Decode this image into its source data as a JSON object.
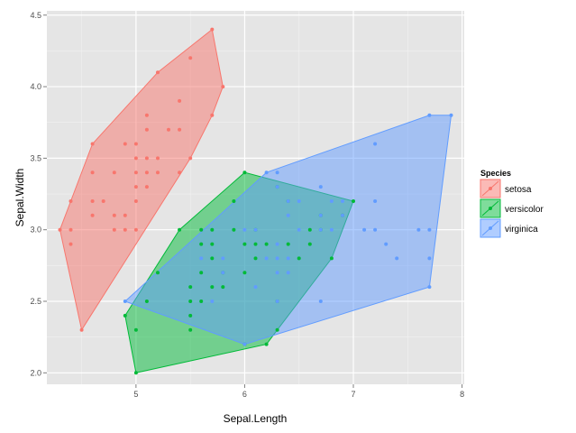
{
  "chart_data": {
    "type": "scatter",
    "title": "",
    "xlabel": "Sepal.Length",
    "ylabel": "Sepal.Width",
    "xlim": [
      4.18,
      8.02
    ],
    "ylim": [
      1.92,
      4.53
    ],
    "x_ticks": [
      5,
      6,
      7,
      8
    ],
    "x_tick_labels": [
      "5",
      "6",
      "7",
      "8"
    ],
    "y_ticks": [
      2.0,
      2.5,
      3.0,
      3.5,
      4.0,
      4.5
    ],
    "y_tick_labels": [
      "2.0",
      "2.5",
      "3.0",
      "3.5",
      "4.0",
      "4.5"
    ],
    "grid": true,
    "legend": {
      "title": "Species",
      "placement": "right"
    },
    "series": [
      {
        "name": "setosa",
        "color": "#F8766D",
        "points": [
          [
            4.3,
            3.0
          ],
          [
            4.4,
            2.9
          ],
          [
            4.4,
            3.0
          ],
          [
            4.4,
            3.2
          ],
          [
            4.5,
            2.3
          ],
          [
            4.6,
            3.1
          ],
          [
            4.6,
            3.2
          ],
          [
            4.6,
            3.4
          ],
          [
            4.6,
            3.6
          ],
          [
            4.7,
            3.2
          ],
          [
            4.8,
            3.0
          ],
          [
            4.8,
            3.1
          ],
          [
            4.8,
            3.4
          ],
          [
            4.9,
            3.0
          ],
          [
            4.9,
            3.1
          ],
          [
            4.9,
            3.6
          ],
          [
            5.0,
            3.0
          ],
          [
            5.0,
            3.2
          ],
          [
            5.0,
            3.3
          ],
          [
            5.0,
            3.4
          ],
          [
            5.0,
            3.5
          ],
          [
            5.0,
            3.6
          ],
          [
            5.1,
            3.3
          ],
          [
            5.1,
            3.4
          ],
          [
            5.1,
            3.5
          ],
          [
            5.1,
            3.7
          ],
          [
            5.1,
            3.8
          ],
          [
            5.2,
            3.4
          ],
          [
            5.2,
            3.5
          ],
          [
            5.2,
            4.1
          ],
          [
            5.3,
            3.7
          ],
          [
            5.4,
            3.4
          ],
          [
            5.4,
            3.7
          ],
          [
            5.4,
            3.9
          ],
          [
            5.5,
            3.5
          ],
          [
            5.5,
            4.2
          ],
          [
            5.7,
            3.8
          ],
          [
            5.7,
            4.4
          ],
          [
            5.8,
            4.0
          ]
        ],
        "hull": [
          [
            4.3,
            3.0
          ],
          [
            4.5,
            2.3
          ],
          [
            5.5,
            3.5
          ],
          [
            5.7,
            3.8
          ],
          [
            5.8,
            4.0
          ],
          [
            5.7,
            4.4
          ],
          [
            5.2,
            4.1
          ],
          [
            4.6,
            3.6
          ],
          [
            4.4,
            3.2
          ]
        ]
      },
      {
        "name": "versicolor",
        "color": "#00BA38",
        "points": [
          [
            4.9,
            2.4
          ],
          [
            5.0,
            2.0
          ],
          [
            5.0,
            2.3
          ],
          [
            5.1,
            2.5
          ],
          [
            5.2,
            2.7
          ],
          [
            5.4,
            3.0
          ],
          [
            5.5,
            2.3
          ],
          [
            5.5,
            2.4
          ],
          [
            5.5,
            2.5
          ],
          [
            5.5,
            2.6
          ],
          [
            5.6,
            2.5
          ],
          [
            5.6,
            2.7
          ],
          [
            5.6,
            2.9
          ],
          [
            5.6,
            3.0
          ],
          [
            5.7,
            2.6
          ],
          [
            5.7,
            2.8
          ],
          [
            5.7,
            2.9
          ],
          [
            5.7,
            3.0
          ],
          [
            5.8,
            2.6
          ],
          [
            5.8,
            2.7
          ],
          [
            5.9,
            3.0
          ],
          [
            5.9,
            3.2
          ],
          [
            6.0,
            2.2
          ],
          [
            6.0,
            2.7
          ],
          [
            6.0,
            2.9
          ],
          [
            6.0,
            3.4
          ],
          [
            6.1,
            2.8
          ],
          [
            6.1,
            2.9
          ],
          [
            6.1,
            3.0
          ],
          [
            6.2,
            2.2
          ],
          [
            6.2,
            2.9
          ],
          [
            6.3,
            2.3
          ],
          [
            6.3,
            2.5
          ],
          [
            6.3,
            3.3
          ],
          [
            6.4,
            2.9
          ],
          [
            6.4,
            3.2
          ],
          [
            6.5,
            2.8
          ],
          [
            6.6,
            2.9
          ],
          [
            6.6,
            3.0
          ],
          [
            6.7,
            3.0
          ],
          [
            6.7,
            3.1
          ],
          [
            6.8,
            2.8
          ],
          [
            6.9,
            3.1
          ],
          [
            7.0,
            3.2
          ]
        ],
        "hull": [
          [
            5.0,
            2.0
          ],
          [
            6.2,
            2.2
          ],
          [
            6.8,
            2.8
          ],
          [
            7.0,
            3.2
          ],
          [
            6.0,
            3.4
          ],
          [
            5.4,
            3.0
          ],
          [
            4.9,
            2.4
          ]
        ]
      },
      {
        "name": "virginica",
        "color": "#619CFF",
        "points": [
          [
            4.9,
            2.5
          ],
          [
            5.6,
            2.8
          ],
          [
            5.7,
            2.5
          ],
          [
            5.8,
            2.7
          ],
          [
            5.8,
            2.8
          ],
          [
            6.0,
            2.2
          ],
          [
            6.0,
            3.0
          ],
          [
            6.1,
            2.6
          ],
          [
            6.1,
            3.0
          ],
          [
            6.2,
            2.8
          ],
          [
            6.2,
            3.4
          ],
          [
            6.3,
            2.5
          ],
          [
            6.3,
            2.7
          ],
          [
            6.3,
            2.8
          ],
          [
            6.3,
            2.9
          ],
          [
            6.3,
            3.3
          ],
          [
            6.3,
            3.4
          ],
          [
            6.4,
            2.7
          ],
          [
            6.4,
            2.8
          ],
          [
            6.4,
            3.1
          ],
          [
            6.4,
            3.2
          ],
          [
            6.5,
            3.0
          ],
          [
            6.5,
            3.2
          ],
          [
            6.7,
            2.5
          ],
          [
            6.7,
            3.0
          ],
          [
            6.7,
            3.1
          ],
          [
            6.7,
            3.3
          ],
          [
            6.8,
            3.0
          ],
          [
            6.8,
            3.2
          ],
          [
            6.9,
            3.1
          ],
          [
            6.9,
            3.2
          ],
          [
            7.1,
            3.0
          ],
          [
            7.2,
            3.0
          ],
          [
            7.2,
            3.2
          ],
          [
            7.2,
            3.6
          ],
          [
            7.3,
            2.9
          ],
          [
            7.4,
            2.8
          ],
          [
            7.6,
            3.0
          ],
          [
            7.7,
            2.6
          ],
          [
            7.7,
            2.8
          ],
          [
            7.7,
            3.0
          ],
          [
            7.7,
            3.8
          ],
          [
            7.9,
            3.8
          ]
        ],
        "hull": [
          [
            4.9,
            2.5
          ],
          [
            6.0,
            2.2
          ],
          [
            7.7,
            2.6
          ],
          [
            7.9,
            3.8
          ],
          [
            7.7,
            3.8
          ],
          [
            6.2,
            3.4
          ]
        ]
      }
    ]
  }
}
